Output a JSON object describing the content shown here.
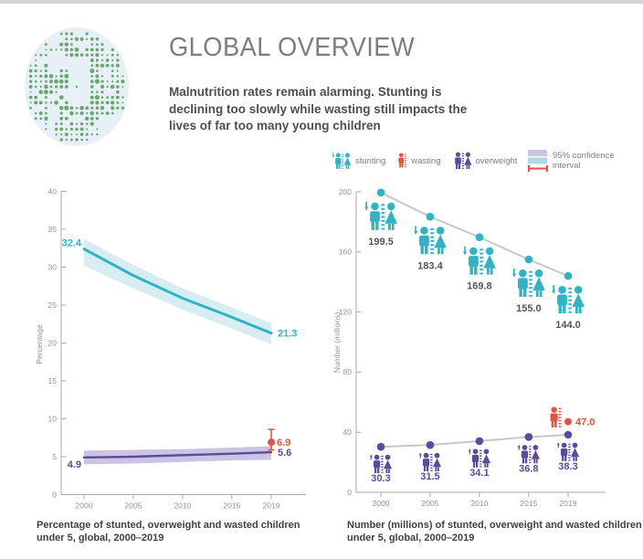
{
  "header": {
    "title": "GLOBAL OVERVIEW",
    "subtitle": "Malnutrition rates remain alarming. Stunting is declining too slowly while wasting still impacts the lives of far too many young children"
  },
  "legend": {
    "items": [
      {
        "id": "stunting",
        "label": "stunting"
      },
      {
        "id": "wasting",
        "label": "wasting"
      },
      {
        "id": "overweight",
        "label": "overweight"
      },
      {
        "id": "confidence",
        "label": "95% confidence interval"
      }
    ]
  },
  "colors": {
    "stunting": "#2fb4c4",
    "stunting_band": "#d8edf2",
    "overweight": "#5b4ba0",
    "overweight_band": "#cbc4e3",
    "wasting": "#e8513e",
    "label_dark": "#55565b",
    "axis": "#a9abae",
    "trend_line": "#c7c8ca",
    "globe_bg": "#e7f0f7",
    "globe_dot": "#6ba570"
  },
  "chart_data": [
    {
      "type": "line",
      "name": "percentage-trends",
      "ylabel": "Percentage",
      "x": [
        2000,
        2005,
        2010,
        2015,
        2019
      ],
      "ylim": [
        0,
        40
      ],
      "yticks": [
        0,
        5,
        10,
        15,
        20,
        25,
        30,
        35,
        40
      ],
      "series": [
        {
          "name": "stunting",
          "values": [
            32.4,
            28.9,
            25.9,
            23.4,
            21.3
          ],
          "ci_upper": [
            33.7,
            30.3,
            27.2,
            24.7,
            22.6
          ],
          "ci_lower": [
            30.2,
            27.2,
            24.4,
            21.9,
            19.8
          ],
          "label_start": "32.4",
          "label_end": "21.3"
        },
        {
          "name": "overweight",
          "values": [
            4.9,
            5.0,
            5.2,
            5.4,
            5.6
          ],
          "ci_upper": [
            5.8,
            5.9,
            6.0,
            6.2,
            6.4
          ],
          "ci_lower": [
            4.0,
            4.1,
            4.3,
            4.5,
            4.6
          ],
          "label_start": "4.9",
          "label_end": "5.6"
        }
      ],
      "point_series": [
        {
          "name": "wasting",
          "x": 2019,
          "value": 6.9,
          "ci": [
            5.9,
            8.6
          ],
          "label": "6.9"
        }
      ]
    },
    {
      "type": "scatter-line",
      "name": "number-trends",
      "ylabel": "Number (millions)",
      "x": [
        2000,
        2005,
        2010,
        2015,
        2019
      ],
      "ylim": [
        0,
        200
      ],
      "yticks": [
        0,
        40,
        80,
        120,
        160,
        200
      ],
      "series": [
        {
          "name": "stunting",
          "values": [
            199.5,
            183.4,
            169.8,
            155.0,
            144.0
          ],
          "labels": [
            "199.5",
            "183.4",
            "169.8",
            "155.0",
            "144.0"
          ]
        },
        {
          "name": "overweight",
          "values": [
            30.3,
            31.5,
            34.1,
            36.8,
            38.3
          ],
          "labels": [
            "30.3",
            "31.5",
            "34.1",
            "36.8",
            "38.3"
          ]
        }
      ],
      "point_series": [
        {
          "name": "wasting",
          "x": 2019,
          "value": 47.0,
          "label": "47.0"
        }
      ]
    }
  ],
  "captions": {
    "left": "Percentage of stunted, overweight and wasted children under 5, global, 2000–2019",
    "right": "Number (millions) of stunted, overweight and wasted children under 5, global, 2000–2019"
  }
}
